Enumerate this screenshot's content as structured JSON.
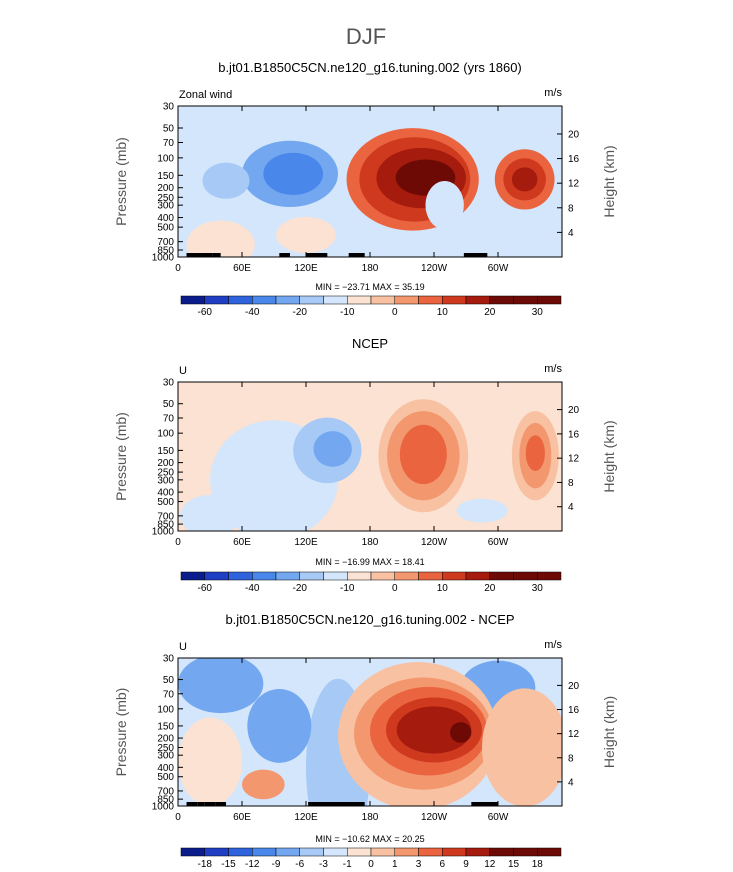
{
  "figure": {
    "season": "DJF",
    "colors": {
      "scale": [
        "#0b1d8c",
        "#1f3ec4",
        "#2f63de",
        "#4a87ea",
        "#73a8f0",
        "#a7c9f6",
        "#d3e6fb",
        "#fbe2d2",
        "#f8c1a2",
        "#f3976f",
        "#e9643f",
        "#cf3a1f",
        "#a51b0e",
        "#6e0a06"
      ],
      "frame": "#000000",
      "topography": "#000000"
    }
  },
  "chart_data": [
    {
      "id": "model",
      "type": "heatmap",
      "title": "b.jt01.B1850C5CN.ne120_g16.tuning.002 (yrs 1860)",
      "variable_label": "Zonal wind",
      "units": "m/s",
      "ylabel": "Pressure (mb)",
      "y2label": "Height (km)",
      "xticks": [
        "0",
        "60E",
        "120E",
        "180",
        "120W",
        "60W"
      ],
      "xtick_lon": [
        0,
        60,
        120,
        180,
        240,
        300
      ],
      "yticks": [
        "30",
        "50",
        "70",
        "100",
        "150",
        "200",
        "250",
        "300",
        "400",
        "500",
        "700",
        "850",
        "1000"
      ],
      "ytick_p": [
        30,
        50,
        70,
        100,
        150,
        200,
        250,
        300,
        400,
        500,
        700,
        850,
        1000
      ],
      "y2ticks": [
        "20",
        "16",
        "12",
        "8",
        "4"
      ],
      "y2tick_km": [
        20,
        16,
        12,
        8,
        4
      ],
      "xlim": [
        0,
        360
      ],
      "ylim_pressure": [
        1000,
        30
      ],
      "stats_text": "MIN = −23.71   MAX =  35.19",
      "stats": {
        "min": -23.71,
        "max": 35.19
      },
      "levels": [
        -60,
        -50,
        -40,
        -30,
        -20,
        -15,
        -10,
        -5,
        0,
        5,
        10,
        15,
        20,
        25,
        30
      ],
      "colorbar_labels": [
        "-60",
        "-40",
        "-20",
        "-10",
        "0",
        "10",
        "20",
        "30"
      ],
      "colorbar_label_index": [
        0,
        2,
        4,
        6,
        8,
        10,
        12,
        14
      ],
      "background": 6,
      "blobs": [
        {
          "lon": 105,
          "p": 145,
          "w": 45,
          "h": 0.22,
          "v": 4
        },
        {
          "lon": 108,
          "p": 145,
          "w": 28,
          "h": 0.14,
          "v": 3
        },
        {
          "lon": 45,
          "p": 170,
          "w": 22,
          "h": 0.12,
          "v": 5
        },
        {
          "lon": 220,
          "p": 165,
          "w": 62,
          "h": 0.34,
          "v": 10
        },
        {
          "lon": 222,
          "p": 165,
          "w": 52,
          "h": 0.28,
          "v": 11
        },
        {
          "lon": 228,
          "p": 160,
          "w": 42,
          "h": 0.2,
          "v": 12
        },
        {
          "lon": 232,
          "p": 158,
          "w": 28,
          "h": 0.12,
          "v": 13
        },
        {
          "lon": 325,
          "p": 165,
          "w": 28,
          "h": 0.2,
          "v": 10
        },
        {
          "lon": 325,
          "p": 165,
          "w": 20,
          "h": 0.14,
          "v": 11
        },
        {
          "lon": 325,
          "p": 165,
          "w": 12,
          "h": 0.08,
          "v": 12
        },
        {
          "lon": 40,
          "p": 750,
          "w": 32,
          "h": 0.16,
          "v": 7
        },
        {
          "lon": 120,
          "p": 600,
          "w": 28,
          "h": 0.12,
          "v": 7
        },
        {
          "lon": 250,
          "p": 300,
          "w": 18,
          "h": 0.16,
          "v": 6
        }
      ],
      "topography_lon": [
        [
          8,
          22
        ],
        [
          22,
          32
        ],
        [
          32,
          40
        ],
        [
          95,
          105
        ],
        [
          120,
          140
        ],
        [
          160,
          175
        ],
        [
          268,
          290
        ]
      ]
    },
    {
      "id": "obs",
      "type": "heatmap",
      "title": "NCEP",
      "variable_label": "U",
      "units": "m/s",
      "ylabel": "Pressure (mb)",
      "y2label": "Height (km)",
      "xticks": [
        "0",
        "60E",
        "120E",
        "180",
        "120W",
        "60W"
      ],
      "xtick_lon": [
        0,
        60,
        120,
        180,
        240,
        300
      ],
      "yticks": [
        "30",
        "50",
        "70",
        "100",
        "150",
        "200",
        "250",
        "300",
        "400",
        "500",
        "700",
        "850",
        "1000"
      ],
      "ytick_p": [
        30,
        50,
        70,
        100,
        150,
        200,
        250,
        300,
        400,
        500,
        700,
        850,
        1000
      ],
      "y2ticks": [
        "20",
        "16",
        "12",
        "8",
        "4"
      ],
      "y2tick_km": [
        20,
        16,
        12,
        8,
        4
      ],
      "xlim": [
        0,
        360
      ],
      "ylim_pressure": [
        1000,
        30
      ],
      "stats_text": "MIN = −16.99   MAX =  18.41",
      "stats": {
        "min": -16.99,
        "max": 18.41
      },
      "levels": [
        -60,
        -50,
        -40,
        -30,
        -20,
        -15,
        -10,
        -5,
        0,
        5,
        10,
        15,
        20,
        25,
        30
      ],
      "colorbar_labels": [
        "-60",
        "-40",
        "-20",
        "-10",
        "0",
        "10",
        "20",
        "30"
      ],
      "colorbar_label_index": [
        0,
        2,
        4,
        6,
        8,
        10,
        12,
        14
      ],
      "background": 7,
      "blobs": [
        {
          "lon": 90,
          "p": 300,
          "w": 60,
          "h": 0.4,
          "v": 6
        },
        {
          "lon": 140,
          "p": 150,
          "w": 32,
          "h": 0.22,
          "v": 5
        },
        {
          "lon": 145,
          "p": 145,
          "w": 18,
          "h": 0.12,
          "v": 4
        },
        {
          "lon": 30,
          "p": 700,
          "w": 28,
          "h": 0.14,
          "v": 6
        },
        {
          "lon": 230,
          "p": 170,
          "w": 42,
          "h": 0.38,
          "v": 8
        },
        {
          "lon": 230,
          "p": 170,
          "w": 34,
          "h": 0.3,
          "v": 9
        },
        {
          "lon": 230,
          "p": 165,
          "w": 22,
          "h": 0.2,
          "v": 10
        },
        {
          "lon": 335,
          "p": 170,
          "w": 22,
          "h": 0.3,
          "v": 8
        },
        {
          "lon": 335,
          "p": 170,
          "w": 15,
          "h": 0.22,
          "v": 9
        },
        {
          "lon": 335,
          "p": 160,
          "w": 9,
          "h": 0.12,
          "v": 10
        },
        {
          "lon": 285,
          "p": 620,
          "w": 24,
          "h": 0.08,
          "v": 6
        }
      ],
      "topography_lon": []
    },
    {
      "id": "diff",
      "type": "heatmap",
      "title": "b.jt01.B1850C5CN.ne120_g16.tuning.002 - NCEP",
      "variable_label": "U",
      "units": "m/s",
      "ylabel": "Pressure (mb)",
      "y2label": "Height (km)",
      "xticks": [
        "0",
        "60E",
        "120E",
        "180",
        "120W",
        "60W"
      ],
      "xtick_lon": [
        0,
        60,
        120,
        180,
        240,
        300
      ],
      "yticks": [
        "30",
        "50",
        "70",
        "100",
        "150",
        "200",
        "250",
        "300",
        "400",
        "500",
        "700",
        "850",
        "1000"
      ],
      "ytick_p": [
        30,
        50,
        70,
        100,
        150,
        200,
        250,
        300,
        400,
        500,
        700,
        850,
        1000
      ],
      "y2ticks": [
        "20",
        "16",
        "12",
        "8",
        "4"
      ],
      "y2tick_km": [
        20,
        16,
        12,
        8,
        4
      ],
      "xlim": [
        0,
        360
      ],
      "ylim_pressure": [
        1000,
        30
      ],
      "stats_text": "MIN = −10.62   MAX =  20.25",
      "stats": {
        "min": -10.62,
        "max": 20.25
      },
      "levels": [
        -18,
        -15,
        -12,
        -9,
        -6,
        -3,
        -1,
        0,
        1,
        3,
        6,
        9,
        12,
        15,
        18
      ],
      "colorbar_labels": [
        "-18",
        "-15",
        "-12",
        "-9",
        "-6",
        "-3",
        "-1",
        "0",
        "1",
        "3",
        "6",
        "9",
        "12",
        "15",
        "18"
      ],
      "colorbar_label_index": [
        0,
        1,
        2,
        3,
        4,
        5,
        6,
        7,
        8,
        9,
        10,
        11,
        12,
        13,
        14
      ],
      "background": 6,
      "blobs": [
        {
          "lon": 40,
          "p": 55,
          "w": 40,
          "h": 0.2,
          "v": 4
        },
        {
          "lon": 300,
          "p": 60,
          "w": 35,
          "h": 0.18,
          "v": 4
        },
        {
          "lon": 150,
          "p": 400,
          "w": 30,
          "h": 0.6,
          "v": 5
        },
        {
          "lon": 95,
          "p": 150,
          "w": 30,
          "h": 0.25,
          "v": 4
        },
        {
          "lon": 30,
          "p": 350,
          "w": 30,
          "h": 0.3,
          "v": 7
        },
        {
          "lon": 80,
          "p": 600,
          "w": 20,
          "h": 0.1,
          "v": 9
        },
        {
          "lon": 225,
          "p": 190,
          "w": 75,
          "h": 0.5,
          "v": 8
        },
        {
          "lon": 230,
          "p": 180,
          "w": 65,
          "h": 0.38,
          "v": 9
        },
        {
          "lon": 235,
          "p": 170,
          "w": 55,
          "h": 0.3,
          "v": 10
        },
        {
          "lon": 240,
          "p": 165,
          "w": 45,
          "h": 0.22,
          "v": 11
        },
        {
          "lon": 240,
          "p": 165,
          "w": 35,
          "h": 0.16,
          "v": 12
        },
        {
          "lon": 265,
          "p": 175,
          "w": 10,
          "h": 0.07,
          "v": 13
        },
        {
          "lon": 325,
          "p": 250,
          "w": 40,
          "h": 0.4,
          "v": 8
        }
      ],
      "topography_lon": [
        [
          8,
          18
        ],
        [
          18,
          25
        ],
        [
          25,
          35
        ],
        [
          35,
          45
        ],
        [
          122,
          175
        ],
        [
          275,
          300
        ]
      ]
    }
  ]
}
